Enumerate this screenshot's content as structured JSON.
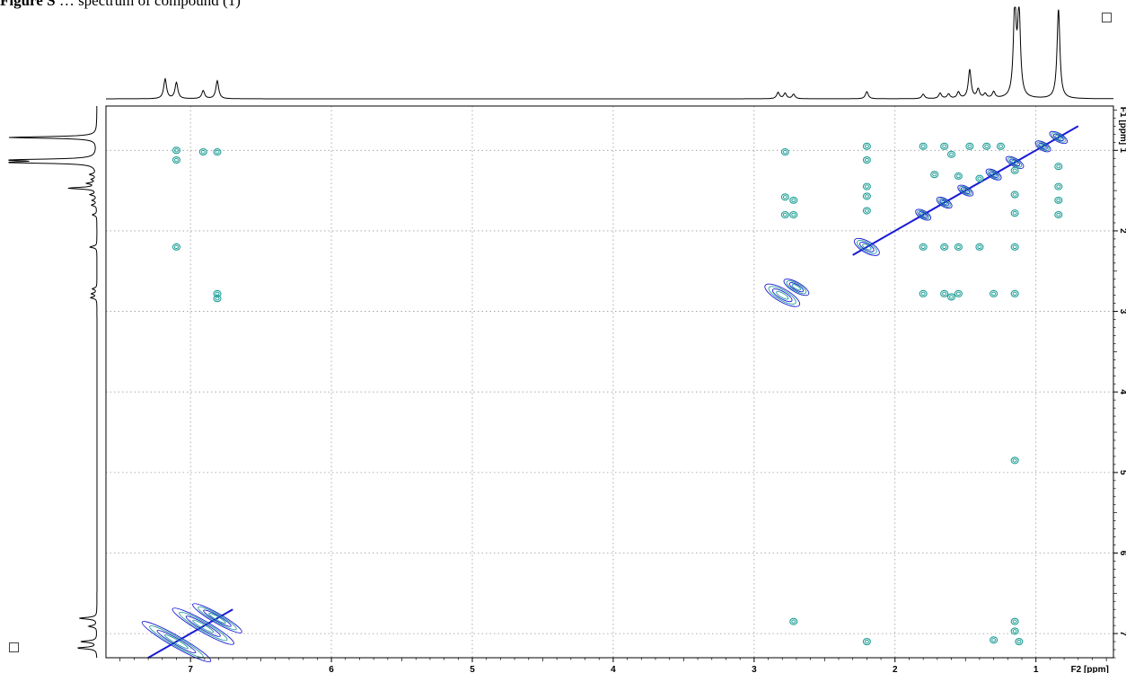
{
  "caption": {
    "bold": "Figure S",
    "rest": "…  spectrum of compound (1)"
  },
  "chart_data": {
    "type": "heatmap",
    "subtype": "2D NMR homonuclear correlation (contour plot) with 1D projections",
    "x_axis": {
      "label": "F2 [ppm]",
      "reversed": true,
      "range": [
        7.6,
        0.45
      ],
      "ticks": [
        7,
        6,
        5,
        4,
        3,
        2,
        1
      ]
    },
    "y_axis": {
      "label": "F1 [ppm]",
      "reversed": false,
      "range": [
        0.45,
        7.3
      ],
      "ticks": [
        1,
        2,
        3,
        4,
        5,
        6,
        7
      ]
    },
    "grid": "dotted",
    "colors": {
      "diagonal": "#1a1ad6",
      "cross_peak": "#1f9e96",
      "frame": "#000000",
      "grid": "#9a9a9a"
    },
    "projection_peaks": [
      {
        "ppm": 7.18,
        "h": 0.22
      },
      {
        "ppm": 7.1,
        "h": 0.18
      },
      {
        "ppm": 6.91,
        "h": 0.09
      },
      {
        "ppm": 6.81,
        "h": 0.2
      },
      {
        "ppm": 2.83,
        "h": 0.07
      },
      {
        "ppm": 2.78,
        "h": 0.06
      },
      {
        "ppm": 2.72,
        "h": 0.05
      },
      {
        "ppm": 2.2,
        "h": 0.08
      },
      {
        "ppm": 1.8,
        "h": 0.05
      },
      {
        "ppm": 1.68,
        "h": 0.06
      },
      {
        "ppm": 1.62,
        "h": 0.05
      },
      {
        "ppm": 1.55,
        "h": 0.07
      },
      {
        "ppm": 1.47,
        "h": 0.32
      },
      {
        "ppm": 1.41,
        "h": 0.1
      },
      {
        "ppm": 1.36,
        "h": 0.05
      },
      {
        "ppm": 1.3,
        "h": 0.07
      },
      {
        "ppm": 1.15,
        "h": 1.0
      },
      {
        "ppm": 1.12,
        "h": 0.95
      },
      {
        "ppm": 0.84,
        "h": 1.0
      }
    ],
    "diagonal_peaks": [
      {
        "ppm": 7.1,
        "wx": 0.28,
        "wy": 0.07
      },
      {
        "ppm": 6.91,
        "wx": 0.25,
        "wy": 0.07
      },
      {
        "ppm": 6.81,
        "wx": 0.2,
        "wy": 0.06
      },
      {
        "ppm": 2.8,
        "wx": 0.14,
        "wy": 0.08
      },
      {
        "ppm": 2.7,
        "wx": 0.1,
        "wy": 0.06
      },
      {
        "ppm": 2.2,
        "wx": 0.1,
        "wy": 0.07
      },
      {
        "ppm": 1.8,
        "wx": 0.06,
        "wy": 0.05
      },
      {
        "ppm": 1.65,
        "wx": 0.06,
        "wy": 0.05
      },
      {
        "ppm": 1.5,
        "wx": 0.06,
        "wy": 0.05
      },
      {
        "ppm": 1.3,
        "wx": 0.06,
        "wy": 0.05
      },
      {
        "ppm": 1.15,
        "wx": 0.07,
        "wy": 0.05
      },
      {
        "ppm": 0.95,
        "wx": 0.06,
        "wy": 0.05
      },
      {
        "ppm": 0.84,
        "wx": 0.07,
        "wy": 0.05
      }
    ],
    "cross_peaks": [
      {
        "x": 7.1,
        "y": 1.0
      },
      {
        "x": 7.1,
        "y": 1.12
      },
      {
        "x": 6.91,
        "y": 1.02
      },
      {
        "x": 6.81,
        "y": 1.02
      },
      {
        "x": 7.1,
        "y": 2.2
      },
      {
        "x": 6.81,
        "y": 2.78
      },
      {
        "x": 6.81,
        "y": 2.84
      },
      {
        "x": 2.78,
        "y": 1.02
      },
      {
        "x": 2.78,
        "y": 1.58
      },
      {
        "x": 2.72,
        "y": 1.62
      },
      {
        "x": 2.78,
        "y": 1.8
      },
      {
        "x": 2.72,
        "y": 1.8
      },
      {
        "x": 2.72,
        "y": 6.85
      },
      {
        "x": 2.2,
        "y": 0.95
      },
      {
        "x": 2.2,
        "y": 1.12
      },
      {
        "x": 2.2,
        "y": 1.45
      },
      {
        "x": 2.2,
        "y": 1.57
      },
      {
        "x": 2.2,
        "y": 1.75
      },
      {
        "x": 2.2,
        "y": 7.1
      },
      {
        "x": 1.8,
        "y": 0.95
      },
      {
        "x": 1.65,
        "y": 0.95
      },
      {
        "x": 1.47,
        "y": 0.95
      },
      {
        "x": 1.35,
        "y": 0.95
      },
      {
        "x": 1.25,
        "y": 0.95
      },
      {
        "x": 1.8,
        "y": 2.2
      },
      {
        "x": 1.65,
        "y": 2.2
      },
      {
        "x": 1.55,
        "y": 2.2
      },
      {
        "x": 1.4,
        "y": 2.2
      },
      {
        "x": 1.15,
        "y": 2.2
      },
      {
        "x": 1.8,
        "y": 2.78
      },
      {
        "x": 1.65,
        "y": 2.78
      },
      {
        "x": 1.6,
        "y": 2.82
      },
      {
        "x": 1.55,
        "y": 2.78
      },
      {
        "x": 1.3,
        "y": 2.78
      },
      {
        "x": 1.15,
        "y": 2.78
      },
      {
        "x": 1.15,
        "y": 4.85
      },
      {
        "x": 1.15,
        "y": 6.85
      },
      {
        "x": 1.15,
        "y": 6.97
      },
      {
        "x": 1.12,
        "y": 7.1
      },
      {
        "x": 1.3,
        "y": 7.08
      },
      {
        "x": 0.84,
        "y": 1.2
      },
      {
        "x": 0.84,
        "y": 1.45
      },
      {
        "x": 0.84,
        "y": 1.62
      },
      {
        "x": 0.84,
        "y": 1.8
      },
      {
        "x": 1.15,
        "y": 1.25
      },
      {
        "x": 1.15,
        "y": 1.55
      },
      {
        "x": 1.15,
        "y": 1.78
      },
      {
        "x": 1.4,
        "y": 1.35
      },
      {
        "x": 1.55,
        "y": 1.32
      },
      {
        "x": 1.6,
        "y": 1.05
      },
      {
        "x": 1.72,
        "y": 1.3
      }
    ]
  }
}
